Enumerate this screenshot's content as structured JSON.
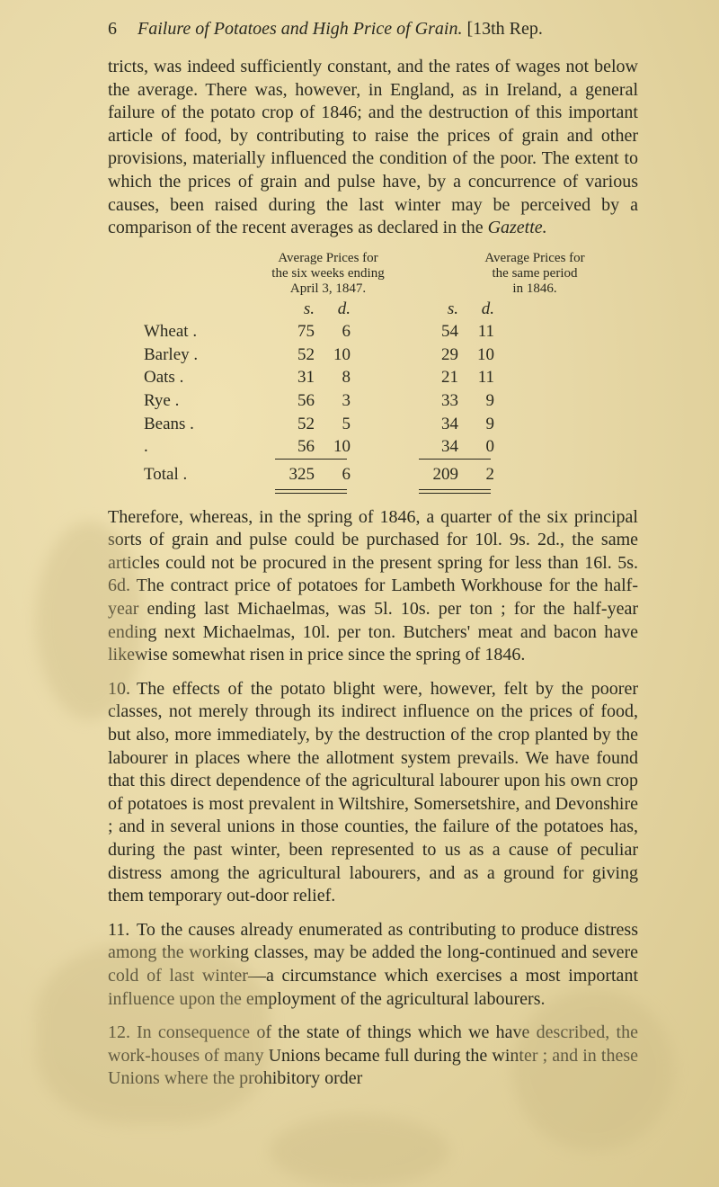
{
  "page": {
    "number": "6",
    "running_head": "Failure of Potatoes and High Price of Grain.",
    "rep": "[13th Rep."
  },
  "para1": "tricts, was indeed sufficiently constant, and the rates of wages not below the average. There was, however, in England, as in Ireland, a general failure of the potato crop of 1846; and the destruction of this important article of food, by contributing to raise the prices of grain and other provisions, materially influenced the condition of the poor. The extent to which the prices of grain and pulse have, by a concurrence of various causes, been raised during the last winter may be perceived by a comparison of the recent averages as declared in the ",
  "para1_tail_italic": "Gazette.",
  "table": {
    "head_left": [
      "Average Prices for",
      "the six weeks ending",
      "April 3, 1847."
    ],
    "head_right": [
      "Average Prices for",
      "the same period",
      "in 1846."
    ],
    "sd_left": {
      "s": "s.",
      "d": "d."
    },
    "sd_right": {
      "s": "s.",
      "d": "d."
    },
    "rows": [
      {
        "label": "Wheat .",
        "l_s": "75",
        "l_d": "6",
        "r_s": "54",
        "r_d": "11"
      },
      {
        "label": "Barley .",
        "l_s": "52",
        "l_d": "10",
        "r_s": "29",
        "r_d": "10"
      },
      {
        "label": "Oats  .",
        "l_s": "31",
        "l_d": "8",
        "r_s": "21",
        "r_d": "11"
      },
      {
        "label": "Rye  .",
        "l_s": "56",
        "l_d": "3",
        "r_s": "33",
        "r_d": "9"
      },
      {
        "label": "Beans .",
        "l_s": "52",
        "l_d": "5",
        "r_s": "34",
        "r_d": "9"
      },
      {
        "label": "   .",
        "l_s": "56",
        "l_d": "10",
        "r_s": "34",
        "r_d": "0"
      }
    ],
    "total": {
      "label": "Total .",
      "l_s": "325",
      "l_d": "6",
      "r_s": "209",
      "r_d": "2"
    }
  },
  "para2": "Therefore, whereas, in the spring of 1846, a quarter of the six principal sorts of grain and pulse could be purchased for 10l. 9s. 2d., the same articles could not be procured in the present spring for less than 16l. 5s. 6d. The contract price of potatoes for Lambeth Workhouse for the half-year ending last Michaelmas, was 5l. 10s. per ton ; for the half-year ending next Michaelmas, 10l. per ton. Butchers' meat and bacon have likewise somewhat risen in price since the spring of 1846.",
  "para3_num": "10.",
  "para3": "The effects of the potato blight were, however, felt by the poorer classes, not merely through its indirect influence on the prices of food, but also, more immediately, by the destruction of the crop planted by the labourer in places where the allotment system prevails. We have found that this direct dependence of the agricultural labourer upon his own crop of potatoes is most prevalent in Wiltshire, Somersetshire, and Devonshire ; and in several unions in those counties, the failure of the potatoes has, during the past winter, been represented to us as a cause of peculiar distress among the agricultural labourers, and as a ground for giving them temporary out-door relief.",
  "para4_num": "11.",
  "para4": "To the causes already enumerated as contributing to produce distress among the working classes, may be added the long-continued and severe cold of last winter—a circumstance which exercises a most important influence upon the employment of the agricultural labourers.",
  "para5_num": "12.",
  "para5": "In consequence of the state of things which we have described, the work-houses of many Unions became full during the winter ; and in these Unions where the prohibitory order"
}
